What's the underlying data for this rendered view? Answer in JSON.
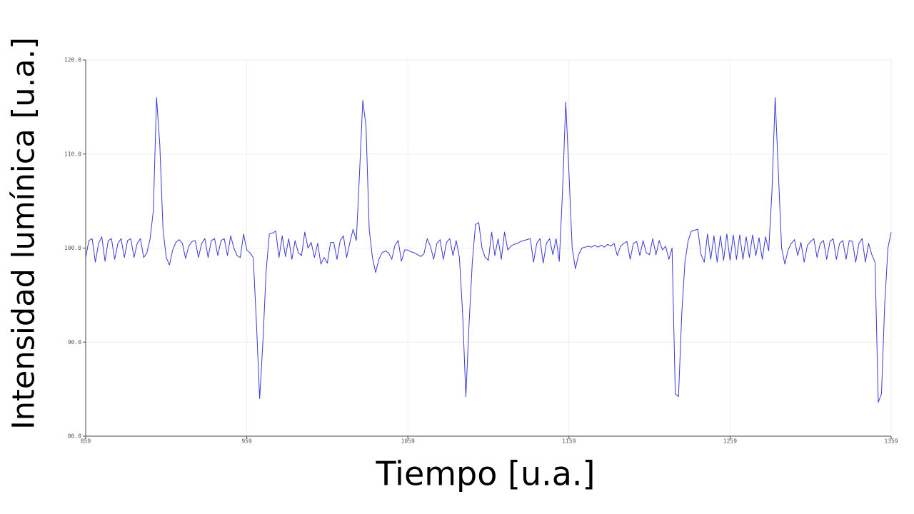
{
  "chart_data": {
    "type": "line",
    "xlabel": "Tiempo [u.a.]",
    "ylabel": "Intensidad lumínica [u.a.]",
    "color": "#3a3ad6",
    "grid": true,
    "xlim": [
      859,
      1359
    ],
    "xticks": [
      859,
      959,
      1059,
      1159,
      1259,
      1359
    ],
    "ylim": [
      80,
      120
    ],
    "yticks": [
      {
        "value": 80,
        "label": "80.0"
      },
      {
        "value": 90,
        "label": "90.0"
      },
      {
        "value": 100,
        "label": "100.0"
      },
      {
        "value": 110,
        "label": "110.0"
      },
      {
        "value": 120,
        "label": "120.0"
      }
    ],
    "x": [
      859,
      861,
      863,
      865,
      867,
      869,
      871,
      873,
      875,
      877,
      879,
      881,
      883,
      885,
      887,
      889,
      891,
      893,
      895,
      897,
      899,
      901,
      903,
      905,
      907,
      909,
      911,
      913,
      915,
      917,
      919,
      921,
      923,
      925,
      927,
      929,
      931,
      933,
      935,
      937,
      939,
      941,
      943,
      945,
      947,
      949,
      951,
      953,
      955,
      957,
      959,
      961,
      963,
      965,
      967,
      969,
      971,
      973,
      975,
      977,
      979,
      981,
      983,
      985,
      987,
      989,
      991,
      993,
      995,
      997,
      999,
      1001,
      1003,
      1005,
      1007,
      1009,
      1011,
      1013,
      1015,
      1017,
      1019,
      1021,
      1023,
      1025,
      1027,
      1029,
      1031,
      1033,
      1035,
      1037,
      1039,
      1041,
      1043,
      1045,
      1047,
      1049,
      1051,
      1053,
      1055,
      1057,
      1059,
      1061,
      1063,
      1065,
      1067,
      1069,
      1071,
      1073,
      1075,
      1077,
      1079,
      1081,
      1083,
      1085,
      1087,
      1089,
      1091,
      1093,
      1095,
      1097,
      1099,
      1101,
      1103,
      1105,
      1107,
      1109,
      1111,
      1113,
      1115,
      1117,
      1119,
      1121,
      1123,
      1125,
      1127,
      1129,
      1131,
      1133,
      1135,
      1137,
      1139,
      1141,
      1143,
      1145,
      1147,
      1149,
      1151,
      1153,
      1155,
      1157,
      1159,
      1161,
      1163,
      1165,
      1167,
      1169,
      1171,
      1173,
      1175,
      1177,
      1179,
      1181,
      1183,
      1185,
      1187,
      1189,
      1191,
      1193,
      1195,
      1197,
      1199,
      1201,
      1203,
      1205,
      1207,
      1209,
      1211,
      1213,
      1215,
      1217,
      1219,
      1221,
      1223,
      1225,
      1227,
      1229,
      1231,
      1233,
      1235,
      1237,
      1239,
      1241,
      1243,
      1245,
      1247,
      1249,
      1251,
      1253,
      1255,
      1257,
      1259,
      1261,
      1263,
      1265,
      1267,
      1269,
      1271,
      1273,
      1275,
      1277,
      1279,
      1281,
      1283,
      1285,
      1287,
      1289,
      1291,
      1293,
      1295,
      1297,
      1299,
      1301,
      1303,
      1305,
      1307,
      1309,
      1311,
      1313,
      1315,
      1317,
      1319,
      1321,
      1323,
      1325,
      1327,
      1329,
      1331,
      1333,
      1335,
      1337,
      1339,
      1341,
      1343,
      1345,
      1347,
      1349,
      1351,
      1353,
      1355,
      1357,
      1359
    ],
    "values": [
      99,
      100.8,
      101,
      98.5,
      100.5,
      101.2,
      98.6,
      100.8,
      101,
      98.8,
      100.5,
      101,
      99,
      100.8,
      101,
      99,
      100.5,
      101,
      99,
      99.5,
      101,
      104,
      116,
      111,
      102,
      99,
      98.2,
      99.8,
      100.6,
      100.9,
      100.5,
      98.9,
      100.2,
      100.7,
      100.8,
      99,
      100.5,
      101,
      99,
      100.8,
      101,
      99.2,
      100.8,
      101,
      99.2,
      101.3,
      100,
      99.2,
      99,
      101.5,
      99.8,
      99.5,
      99,
      92,
      84,
      90,
      97.5,
      101.5,
      101.6,
      101.8,
      99,
      101.3,
      99.1,
      101,
      98.8,
      100.8,
      99.5,
      99.2,
      101.7,
      100,
      100.6,
      99,
      100.5,
      98.3,
      99,
      98.4,
      100.6,
      100.6,
      98.8,
      100.8,
      101.3,
      99,
      100.6,
      102,
      100.8,
      108,
      115.7,
      113,
      102,
      99,
      97.4,
      98.8,
      99.5,
      99.7,
      99.5,
      98.8,
      100.3,
      100.8,
      98.6,
      99.8,
      99.8,
      99.6,
      99.5,
      99.3,
      99.1,
      99.4,
      101,
      100.2,
      98.8,
      100.5,
      100.9,
      98.8,
      100.6,
      101,
      99.2,
      100.8,
      99,
      93,
      84.2,
      92,
      98.5,
      102.5,
      102.7,
      100,
      99,
      98.7,
      101.7,
      99.2,
      101,
      98.8,
      101.7,
      99.8,
      100.2,
      100.4,
      100.5,
      100.7,
      100.8,
      100.9,
      101,
      98.5,
      100.5,
      101,
      98.4,
      100.5,
      101,
      99.3,
      101,
      98.6,
      106,
      115.5,
      108,
      100,
      97.8,
      99.3,
      100,
      100.1,
      100.2,
      100.1,
      100.3,
      100.1,
      100.3,
      100.1,
      100.4,
      100.2,
      100.5,
      99.2,
      100.2,
      100.5,
      100.7,
      98.8,
      100.5,
      100.7,
      99.2,
      100.8,
      99.5,
      99.3,
      101,
      99.3,
      100.8,
      99.8,
      100.2,
      98.8,
      100,
      84.5,
      84.2,
      93,
      98.5,
      100.8,
      101.8,
      101.9,
      102,
      99.3,
      98.5,
      101.5,
      98.8,
      101.3,
      98.5,
      101.3,
      98.7,
      101.5,
      98.7,
      101.4,
      98.8,
      101.4,
      98.8,
      101.2,
      99,
      101.4,
      99.2,
      101.1,
      98.8,
      101.2,
      99.7,
      106,
      116,
      108,
      100,
      98.3,
      99.8,
      100.5,
      100.9,
      99.2,
      100.6,
      98.5,
      100.3,
      100.7,
      101,
      99,
      100.5,
      100.8,
      98.8,
      100.7,
      101,
      98.8,
      100.5,
      100.8,
      98.8,
      100.8,
      100.7,
      98.5,
      100.5,
      101,
      98.5,
      100.5,
      99.3,
      98.5,
      83.6,
      84.5,
      94,
      100,
      101.7
    ]
  }
}
